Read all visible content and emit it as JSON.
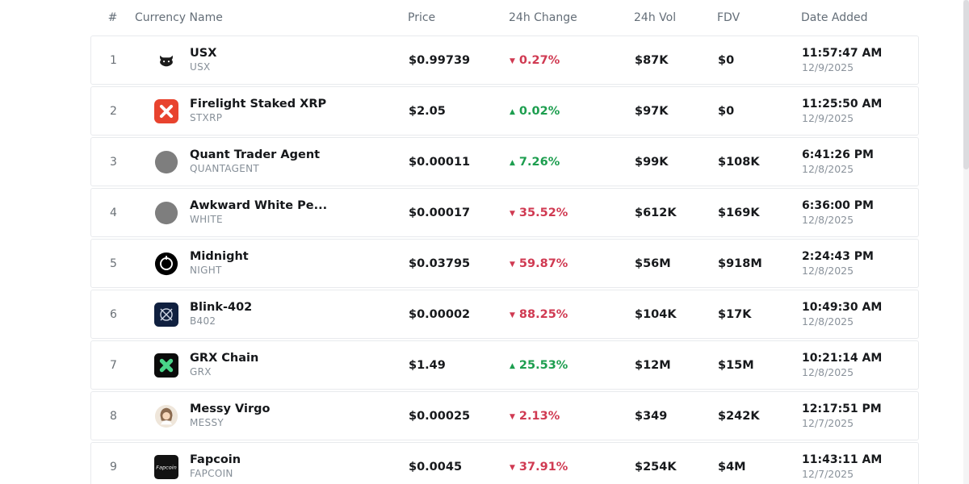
{
  "colors": {
    "positive": "#1d9e4f",
    "negative": "#d03a52"
  },
  "table": {
    "columns": [
      "#",
      "Currency Name",
      "Price",
      "24h Change",
      "24h Vol",
      "FDV",
      "Date Added"
    ],
    "rows": [
      {
        "rank": "1",
        "name": "USX",
        "symbol": "USX",
        "icon": "usx",
        "price": "$0.99739",
        "change": "0.27%",
        "dir": "down",
        "vol": "$87K",
        "fdv": "$0",
        "time": "11:57:47 AM",
        "date": "12/9/2025"
      },
      {
        "rank": "2",
        "name": "Firelight Staked XRP",
        "symbol": "STXRP",
        "icon": "xrp",
        "price": "$2.05",
        "change": "0.02%",
        "dir": "up",
        "vol": "$97K",
        "fdv": "$0",
        "time": "11:25:50 AM",
        "date": "12/9/2025"
      },
      {
        "rank": "3",
        "name": "Quant Trader Agent",
        "symbol": "QUANTAGENT",
        "icon": "gray",
        "price": "$0.00011",
        "change": "7.26%",
        "dir": "up",
        "vol": "$99K",
        "fdv": "$108K",
        "time": "6:41:26 PM",
        "date": "12/8/2025"
      },
      {
        "rank": "4",
        "name": "Awkward White Pe...",
        "symbol": "WHITE",
        "icon": "gray",
        "price": "$0.00017",
        "change": "35.52%",
        "dir": "down",
        "vol": "$612K",
        "fdv": "$169K",
        "time": "6:36:00 PM",
        "date": "12/8/2025"
      },
      {
        "rank": "5",
        "name": "Midnight",
        "symbol": "NIGHT",
        "icon": "midnight",
        "price": "$0.03795",
        "change": "59.87%",
        "dir": "down",
        "vol": "$56M",
        "fdv": "$918M",
        "time": "2:24:43 PM",
        "date": "12/8/2025"
      },
      {
        "rank": "6",
        "name": "Blink-402",
        "symbol": "B402",
        "icon": "blink",
        "price": "$0.00002",
        "change": "88.25%",
        "dir": "down",
        "vol": "$104K",
        "fdv": "$17K",
        "time": "10:49:30 AM",
        "date": "12/8/2025"
      },
      {
        "rank": "7",
        "name": "GRX Chain",
        "symbol": "GRX",
        "icon": "grx",
        "price": "$1.49",
        "change": "25.53%",
        "dir": "up",
        "vol": "$12M",
        "fdv": "$15M",
        "time": "10:21:14 AM",
        "date": "12/8/2025"
      },
      {
        "rank": "8",
        "name": "Messy Virgo",
        "symbol": "MESSY",
        "icon": "avatar",
        "price": "$0.00025",
        "change": "2.13%",
        "dir": "down",
        "vol": "$349",
        "fdv": "$242K",
        "time": "12:17:51 PM",
        "date": "12/7/2025"
      },
      {
        "rank": "9",
        "name": "Fapcoin",
        "symbol": "FAPCOIN",
        "icon": "fapcoin",
        "price": "$0.0045",
        "change": "37.91%",
        "dir": "down",
        "vol": "$254K",
        "fdv": "$4M",
        "time": "11:43:11 AM",
        "date": "12/7/2025"
      }
    ]
  }
}
